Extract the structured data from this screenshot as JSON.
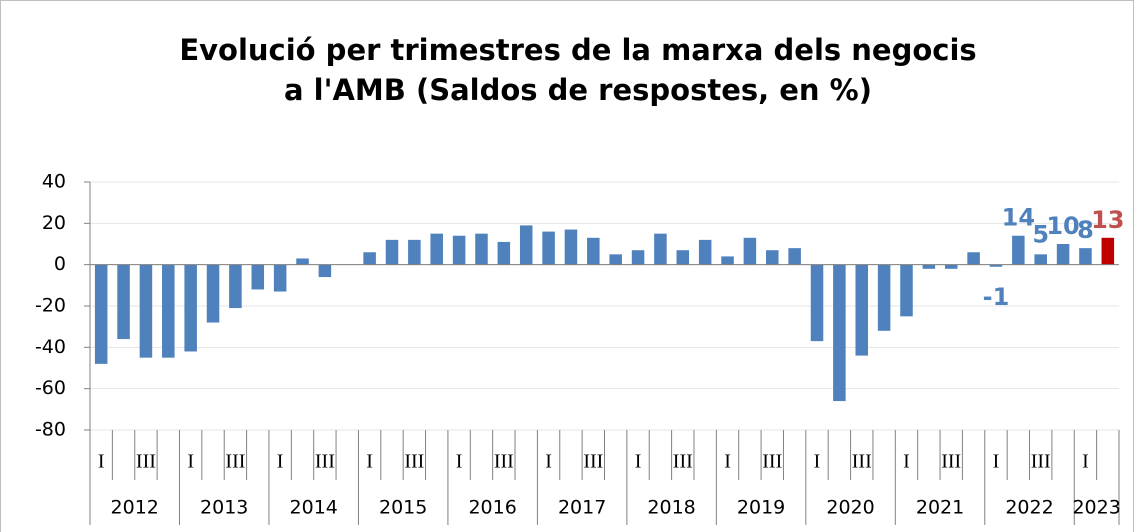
{
  "chart_data": {
    "type": "bar",
    "title": [
      "Evolució per trimestres de la marxa dels negocis",
      "a l'AMB (Saldos de respostes, en %)"
    ],
    "years": [
      "2012",
      "2013",
      "2014",
      "2015",
      "2016",
      "2017",
      "2018",
      "2019",
      "2020",
      "2021",
      "2022",
      "2023"
    ],
    "categories": [
      "I",
      null,
      "III",
      null,
      "I",
      null,
      "III",
      null,
      "I",
      null,
      "III",
      null,
      "I",
      null,
      "III",
      null,
      "I",
      null,
      "III",
      null,
      "I",
      null,
      "III",
      null,
      "I",
      null,
      "III",
      null,
      "I",
      null,
      "III",
      null,
      "I",
      null,
      "III",
      null,
      "I",
      null,
      "III",
      null,
      "I",
      null,
      "III",
      null,
      "I",
      null
    ],
    "values": [
      -48,
      -36,
      -45,
      -45,
      -42,
      -28,
      -21,
      -12,
      -13,
      3,
      -6,
      0,
      6,
      12,
      12,
      15,
      14,
      15,
      11,
      19,
      16,
      17,
      13,
      5,
      7,
      15,
      7,
      12,
      4,
      13,
      7,
      8,
      -37,
      -66,
      -44,
      -32,
      -25,
      -2,
      -2,
      6,
      -1,
      14,
      5,
      10,
      8,
      13
    ],
    "value_labels": [
      null,
      null,
      null,
      null,
      null,
      null,
      null,
      null,
      null,
      null,
      null,
      null,
      null,
      null,
      null,
      null,
      null,
      null,
      null,
      null,
      null,
      null,
      null,
      null,
      null,
      null,
      null,
      null,
      null,
      null,
      null,
      null,
      null,
      null,
      null,
      null,
      null,
      null,
      null,
      null,
      "-1",
      "14",
      "5",
      "10",
      "8",
      "13"
    ],
    "colors": [
      "#4f81bd",
      "#4f81bd",
      "#4f81bd",
      "#4f81bd",
      "#4f81bd",
      "#4f81bd",
      "#4f81bd",
      "#4f81bd",
      "#4f81bd",
      "#4f81bd",
      "#4f81bd",
      "#4f81bd",
      "#4f81bd",
      "#4f81bd",
      "#4f81bd",
      "#4f81bd",
      "#4f81bd",
      "#4f81bd",
      "#4f81bd",
      "#4f81bd",
      "#4f81bd",
      "#4f81bd",
      "#4f81bd",
      "#4f81bd",
      "#4f81bd",
      "#4f81bd",
      "#4f81bd",
      "#4f81bd",
      "#4f81bd",
      "#4f81bd",
      "#4f81bd",
      "#4f81bd",
      "#4f81bd",
      "#4f81bd",
      "#4f81bd",
      "#4f81bd",
      "#4f81bd",
      "#4f81bd",
      "#4f81bd",
      "#4f81bd",
      "#4f81bd",
      "#4f81bd",
      "#4f81bd",
      "#4f81bd",
      "#4f81bd",
      "#c00000"
    ],
    "label_colors": [
      null,
      null,
      null,
      null,
      null,
      null,
      null,
      null,
      null,
      null,
      null,
      null,
      null,
      null,
      null,
      null,
      null,
      null,
      null,
      null,
      null,
      null,
      null,
      null,
      null,
      null,
      null,
      null,
      null,
      null,
      null,
      null,
      null,
      null,
      null,
      null,
      null,
      null,
      null,
      null,
      "#4f81bd",
      "#4f81bd",
      "#4f81bd",
      "#4f81bd",
      "#4f81bd",
      "#c0504d"
    ],
    "ylim": [
      -80,
      40
    ],
    "yticks": [
      -80,
      -60,
      -40,
      -20,
      0,
      20,
      40
    ],
    "grid": true
  }
}
